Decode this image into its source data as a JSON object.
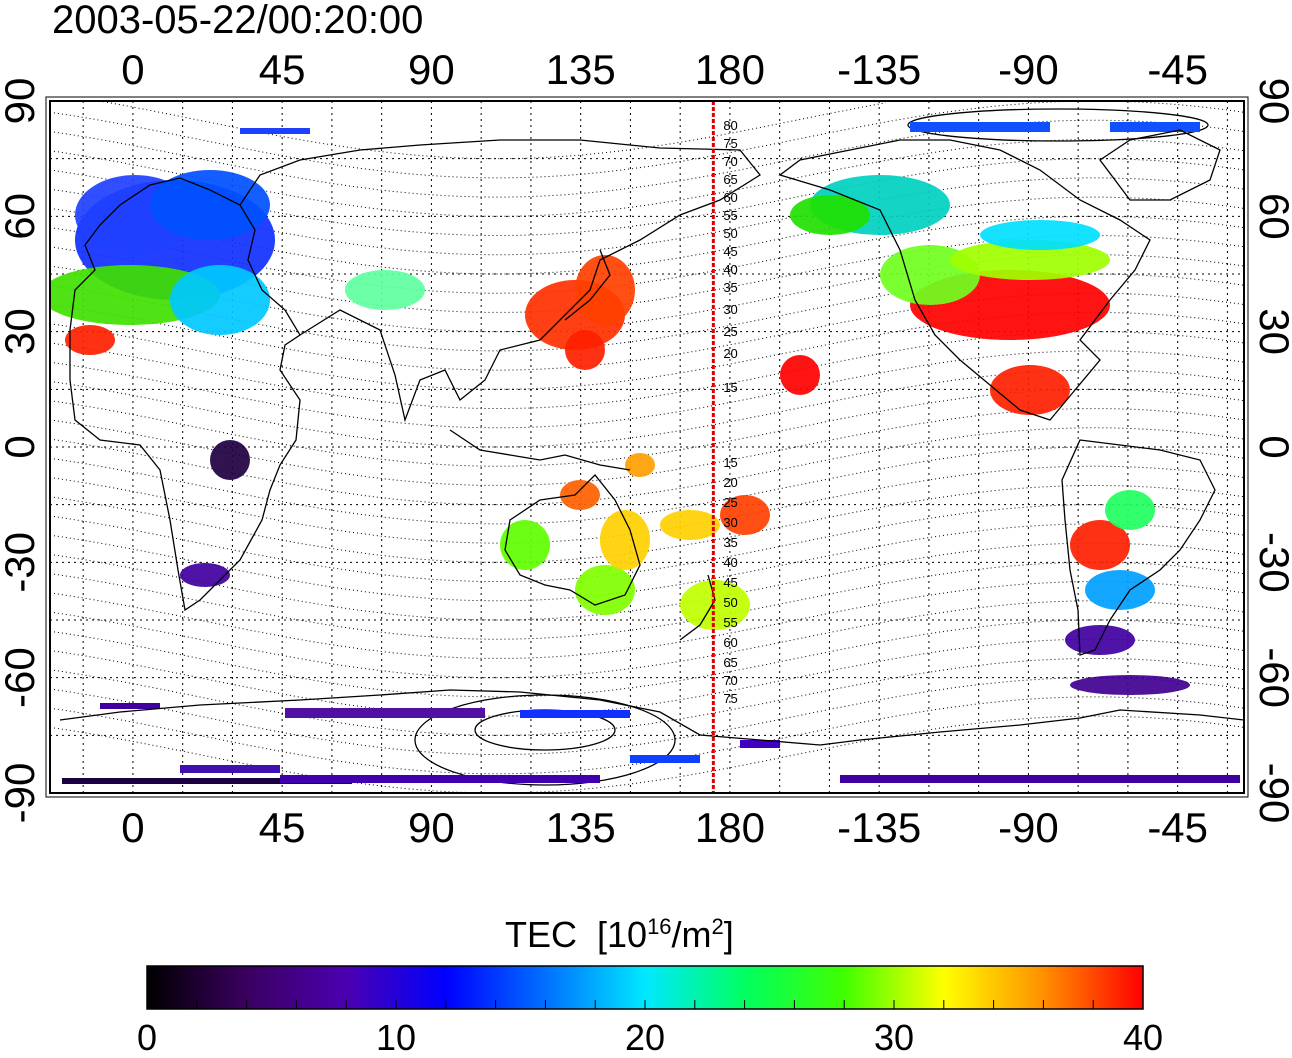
{
  "timestamp": "2003-05-22/00:20:00",
  "map": {
    "top_lon_labels": [
      "0",
      "45",
      "90",
      "135",
      "180",
      "-135",
      "-90",
      "-45"
    ],
    "bottom_lon_labels": [
      "0",
      "45",
      "90",
      "135",
      "180",
      "-135",
      "-90",
      "-45"
    ],
    "left_lat_labels": [
      "90",
      "60",
      "30",
      "0",
      "-30",
      "-60",
      "-90"
    ],
    "right_lat_labels": [
      "90",
      "60",
      "30",
      "0",
      "-30",
      "-60",
      "-90"
    ],
    "north_contour_labels": [
      "80",
      "75",
      "70",
      "65",
      "60",
      "55",
      "50",
      "45",
      "40",
      "35",
      "30",
      "25",
      "20",
      "15"
    ],
    "south_contour_labels": [
      "15",
      "20",
      "25",
      "30",
      "35",
      "40",
      "45",
      "50",
      "55",
      "60",
      "65",
      "70",
      "75"
    ],
    "terminator_line_color": "#dd0000",
    "longitude_range": [
      -25,
      335
    ],
    "latitude_range": [
      -90,
      90
    ],
    "terminator_longitude": 175
  },
  "colorbar": {
    "title": "TEC",
    "unit_prefix": "[10",
    "unit_exp": "16",
    "unit_mid": "/m",
    "unit_exp2": "2",
    "unit_suffix": "]",
    "tick_labels": [
      "0",
      "10",
      "20",
      "30",
      "40"
    ],
    "range": [
      0,
      40
    ],
    "colors": [
      "#000000",
      "#3a0060",
      "#4b00b0",
      "#0000ff",
      "#0070ff",
      "#00e8ff",
      "#00ff60",
      "#40ff00",
      "#ffff00",
      "#ff9000",
      "#ff0000"
    ]
  }
}
